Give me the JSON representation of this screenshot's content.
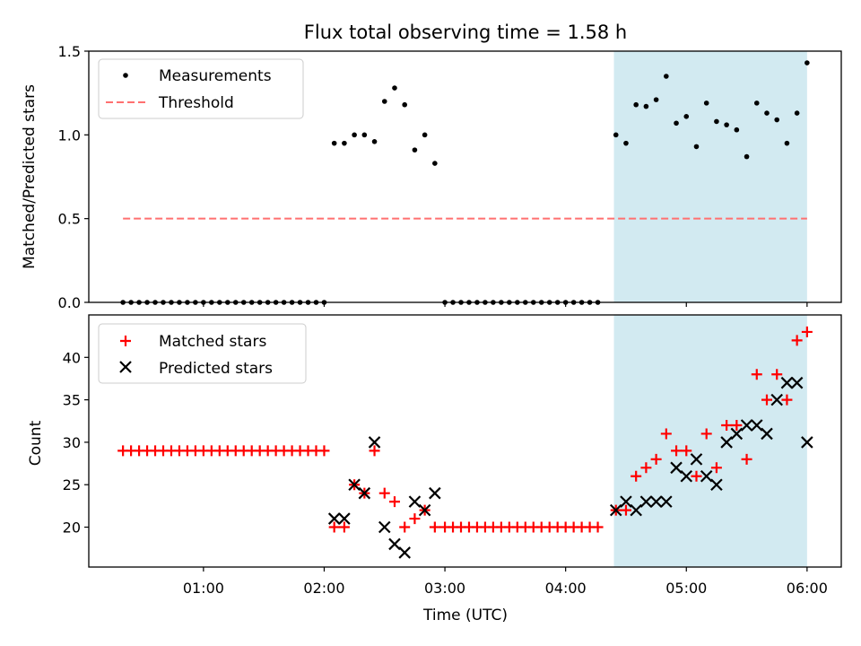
{
  "chart_data": [
    {
      "type": "scatter",
      "title": "Flux total observing time = 1.58 h",
      "xlabel": "",
      "ylabel": "Matched/Predicted stars",
      "ylim": [
        0,
        1.5
      ],
      "yticks": [
        "0.0",
        "0.5",
        "1.0",
        "1.5"
      ],
      "grid": false,
      "legend_position": "upper-left",
      "highlight_span": {
        "start": "04:24",
        "end": "06:00",
        "color": "#add8e6"
      },
      "series": [
        {
          "name": "Measurements",
          "marker": "dot",
          "color": "#000000",
          "points": [
            [
              "00:20",
              0
            ],
            [
              "00:24",
              0
            ],
            [
              "00:28",
              0
            ],
            [
              "00:32",
              0
            ],
            [
              "00:36",
              0
            ],
            [
              "00:40",
              0
            ],
            [
              "00:44",
              0
            ],
            [
              "00:48",
              0
            ],
            [
              "00:52",
              0
            ],
            [
              "00:56",
              0
            ],
            [
              "01:00",
              0
            ],
            [
              "01:04",
              0
            ],
            [
              "01:08",
              0
            ],
            [
              "01:12",
              0
            ],
            [
              "01:16",
              0
            ],
            [
              "01:20",
              0
            ],
            [
              "01:24",
              0
            ],
            [
              "01:28",
              0
            ],
            [
              "01:32",
              0
            ],
            [
              "01:36",
              0
            ],
            [
              "01:40",
              0
            ],
            [
              "01:44",
              0
            ],
            [
              "01:48",
              0
            ],
            [
              "01:52",
              0
            ],
            [
              "01:56",
              0
            ],
            [
              "02:00",
              0
            ],
            [
              "02:05",
              0.95
            ],
            [
              "02:10",
              0.95
            ],
            [
              "02:15",
              1.0
            ],
            [
              "02:20",
              1.0
            ],
            [
              "02:25",
              0.96
            ],
            [
              "02:30",
              1.2
            ],
            [
              "02:35",
              1.28
            ],
            [
              "02:40",
              1.18
            ],
            [
              "02:45",
              0.91
            ],
            [
              "02:50",
              1.0
            ],
            [
              "02:55",
              0.83
            ],
            [
              "03:00",
              0
            ],
            [
              "03:04",
              0
            ],
            [
              "03:08",
              0
            ],
            [
              "03:12",
              0
            ],
            [
              "03:16",
              0
            ],
            [
              "03:20",
              0
            ],
            [
              "03:24",
              0
            ],
            [
              "03:28",
              0
            ],
            [
              "03:32",
              0
            ],
            [
              "03:36",
              0
            ],
            [
              "03:40",
              0
            ],
            [
              "03:44",
              0
            ],
            [
              "03:48",
              0
            ],
            [
              "03:52",
              0
            ],
            [
              "03:56",
              0
            ],
            [
              "04:00",
              0
            ],
            [
              "04:04",
              0
            ],
            [
              "04:08",
              0
            ],
            [
              "04:12",
              0
            ],
            [
              "04:16",
              0
            ],
            [
              "04:25",
              1.0
            ],
            [
              "04:30",
              0.95
            ],
            [
              "04:35",
              1.18
            ],
            [
              "04:40",
              1.17
            ],
            [
              "04:45",
              1.21
            ],
            [
              "04:50",
              1.35
            ],
            [
              "04:55",
              1.07
            ],
            [
              "05:00",
              1.11
            ],
            [
              "05:05",
              0.93
            ],
            [
              "05:10",
              1.19
            ],
            [
              "05:15",
              1.08
            ],
            [
              "05:20",
              1.06
            ],
            [
              "05:25",
              1.03
            ],
            [
              "05:30",
              0.87
            ],
            [
              "05:35",
              1.19
            ],
            [
              "05:40",
              1.13
            ],
            [
              "05:45",
              1.09
            ],
            [
              "05:50",
              0.95
            ],
            [
              "05:55",
              1.13
            ],
            [
              "06:00",
              1.43
            ]
          ]
        },
        {
          "name": "Threshold",
          "style": "dashed-line",
          "color": "#ff7070",
          "points": [
            [
              "00:20",
              0.5
            ],
            [
              "06:00",
              0.5
            ]
          ]
        }
      ]
    },
    {
      "type": "scatter",
      "title": "",
      "xlabel": "Time (UTC)",
      "ylabel": "Count",
      "ylim": [
        15.3,
        45
      ],
      "yticks": [
        "20",
        "25",
        "30",
        "35",
        "40"
      ],
      "xticks": [
        "01:00",
        "02:00",
        "03:00",
        "04:00",
        "05:00",
        "06:00"
      ],
      "xlim": [
        "00:03",
        "06:17"
      ],
      "grid": false,
      "legend_position": "upper-left",
      "highlight_span": {
        "start": "04:24",
        "end": "06:00",
        "color": "#add8e6"
      },
      "series": [
        {
          "name": "Matched stars",
          "marker": "plus",
          "color": "#ff0000",
          "points": [
            [
              "00:20",
              29
            ],
            [
              "00:24",
              29
            ],
            [
              "00:28",
              29
            ],
            [
              "00:32",
              29
            ],
            [
              "00:36",
              29
            ],
            [
              "00:40",
              29
            ],
            [
              "00:44",
              29
            ],
            [
              "00:48",
              29
            ],
            [
              "00:52",
              29
            ],
            [
              "00:56",
              29
            ],
            [
              "01:00",
              29
            ],
            [
              "01:04",
              29
            ],
            [
              "01:08",
              29
            ],
            [
              "01:12",
              29
            ],
            [
              "01:16",
              29
            ],
            [
              "01:20",
              29
            ],
            [
              "01:24",
              29
            ],
            [
              "01:28",
              29
            ],
            [
              "01:32",
              29
            ],
            [
              "01:36",
              29
            ],
            [
              "01:40",
              29
            ],
            [
              "01:44",
              29
            ],
            [
              "01:48",
              29
            ],
            [
              "01:52",
              29
            ],
            [
              "01:56",
              29
            ],
            [
              "02:00",
              29
            ],
            [
              "02:05",
              20
            ],
            [
              "02:10",
              20
            ],
            [
              "02:15",
              25
            ],
            [
              "02:20",
              24
            ],
            [
              "02:25",
              29
            ],
            [
              "02:30",
              24
            ],
            [
              "02:35",
              23
            ],
            [
              "02:40",
              20
            ],
            [
              "02:45",
              21
            ],
            [
              "02:50",
              22
            ],
            [
              "02:55",
              20
            ],
            [
              "03:00",
              20
            ],
            [
              "03:04",
              20
            ],
            [
              "03:08",
              20
            ],
            [
              "03:12",
              20
            ],
            [
              "03:16",
              20
            ],
            [
              "03:20",
              20
            ],
            [
              "03:24",
              20
            ],
            [
              "03:28",
              20
            ],
            [
              "03:32",
              20
            ],
            [
              "03:36",
              20
            ],
            [
              "03:40",
              20
            ],
            [
              "03:44",
              20
            ],
            [
              "03:48",
              20
            ],
            [
              "03:52",
              20
            ],
            [
              "03:56",
              20
            ],
            [
              "04:00",
              20
            ],
            [
              "04:04",
              20
            ],
            [
              "04:08",
              20
            ],
            [
              "04:12",
              20
            ],
            [
              "04:16",
              20
            ],
            [
              "04:25",
              22
            ],
            [
              "04:30",
              22
            ],
            [
              "04:35",
              26
            ],
            [
              "04:40",
              27
            ],
            [
              "04:45",
              28
            ],
            [
              "04:50",
              31
            ],
            [
              "04:55",
              29
            ],
            [
              "05:00",
              29
            ],
            [
              "05:05",
              26
            ],
            [
              "05:10",
              31
            ],
            [
              "05:15",
              27
            ],
            [
              "05:20",
              32
            ],
            [
              "05:25",
              32
            ],
            [
              "05:30",
              28
            ],
            [
              "05:35",
              38
            ],
            [
              "05:40",
              35
            ],
            [
              "05:45",
              38
            ],
            [
              "05:50",
              35
            ],
            [
              "05:55",
              42
            ],
            [
              "06:00",
              43
            ]
          ]
        },
        {
          "name": "Predicted stars",
          "marker": "x",
          "color": "#000000",
          "points": [
            [
              "02:05",
              21
            ],
            [
              "02:10",
              21
            ],
            [
              "02:15",
              25
            ],
            [
              "02:20",
              24
            ],
            [
              "02:25",
              30
            ],
            [
              "02:30",
              20
            ],
            [
              "02:35",
              18
            ],
            [
              "02:40",
              17
            ],
            [
              "02:45",
              23
            ],
            [
              "02:50",
              22
            ],
            [
              "02:55",
              24
            ],
            [
              "04:25",
              22
            ],
            [
              "04:30",
              23
            ],
            [
              "04:35",
              22
            ],
            [
              "04:40",
              23
            ],
            [
              "04:45",
              23
            ],
            [
              "04:50",
              23
            ],
            [
              "04:55",
              27
            ],
            [
              "05:00",
              26
            ],
            [
              "05:05",
              28
            ],
            [
              "05:10",
              26
            ],
            [
              "05:15",
              25
            ],
            [
              "05:20",
              30
            ],
            [
              "05:25",
              31
            ],
            [
              "05:30",
              32
            ],
            [
              "05:35",
              32
            ],
            [
              "05:40",
              31
            ],
            [
              "05:45",
              35
            ],
            [
              "05:50",
              37
            ],
            [
              "05:55",
              37
            ],
            [
              "06:00",
              30
            ]
          ]
        }
      ]
    }
  ]
}
